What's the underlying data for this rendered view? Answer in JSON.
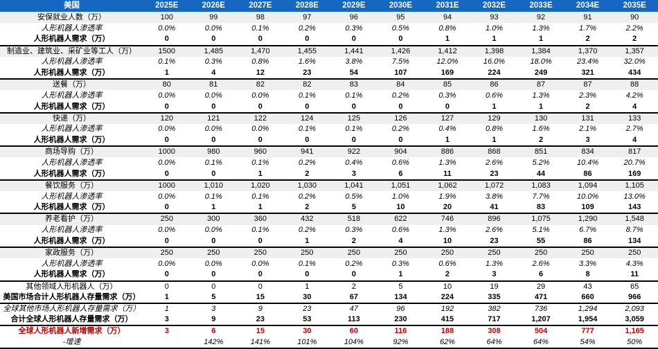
{
  "colors": {
    "header_bg": "#1567c2",
    "header_text": "#ffffff",
    "band_bg": "#efefef",
    "text": "#000000",
    "accent_red": "#c00000",
    "border": "#000000"
  },
  "chart_data": {
    "type": "table",
    "region_label": "美国",
    "categories": [
      "2025E",
      "2026E",
      "2027E",
      "2028E",
      "2029E",
      "2030E",
      "2031E",
      "2032E",
      "2033E",
      "2034E",
      "2035E"
    ],
    "rows": [
      {
        "label": "安保就业人数（万）",
        "style": "category",
        "separator": false,
        "values": [
          "100",
          "99",
          "98",
          "97",
          "96",
          "95",
          "94",
          "93",
          "92",
          "91",
          "90"
        ]
      },
      {
        "label": "人形机器人渗透率",
        "style": "penetration",
        "separator": false,
        "values": [
          "0.0%",
          "0.0%",
          "0.1%",
          "0.2%",
          "0.3%",
          "0.5%",
          "0.8%",
          "1.0%",
          "1.3%",
          "1.7%",
          "2.2%"
        ]
      },
      {
        "label": "人形机器人需求（万）",
        "style": "demand",
        "separator": false,
        "values": [
          "0",
          "0",
          "0",
          "0",
          "0",
          "0",
          "1",
          "1",
          "1",
          "2",
          "2"
        ]
      },
      {
        "label": "制造业、建筑业、采矿业等工人（万）",
        "style": "category",
        "separator": true,
        "values": [
          "1500",
          "1,485",
          "1,470",
          "1,455",
          "1,441",
          "1,426",
          "1,412",
          "1,398",
          "1,384",
          "1,370",
          "1,357"
        ]
      },
      {
        "label": "人形机器人渗透率",
        "style": "penetration",
        "separator": false,
        "values": [
          "0.1%",
          "0.3%",
          "0.8%",
          "1.6%",
          "3.8%",
          "7.5%",
          "12.0%",
          "16.0%",
          "18.0%",
          "23.4%",
          "32.0%"
        ]
      },
      {
        "label": "人形机器人需求（万）",
        "style": "demand",
        "separator": false,
        "values": [
          "1",
          "4",
          "12",
          "23",
          "54",
          "107",
          "169",
          "224",
          "249",
          "321",
          "434"
        ]
      },
      {
        "label": "送餐（万）",
        "style": "category",
        "separator": true,
        "values": [
          "80",
          "81",
          "82",
          "82",
          "83",
          "84",
          "85",
          "86",
          "87",
          "87",
          "88"
        ]
      },
      {
        "label": "人形机器人渗透率",
        "style": "penetration",
        "separator": false,
        "values": [
          "0.0%",
          "0.0%",
          "0.0%",
          "0.1%",
          "0.1%",
          "0.2%",
          "0.3%",
          "0.6%",
          "1.3%",
          "2.3%",
          "4.2%"
        ]
      },
      {
        "label": "人形机器人需求（万）",
        "style": "demand",
        "separator": false,
        "values": [
          "0",
          "0",
          "0",
          "0",
          "0",
          "0",
          "0",
          "1",
          "1",
          "2",
          "4"
        ]
      },
      {
        "label": "快递（万）",
        "style": "category",
        "separator": true,
        "values": [
          "120",
          "121",
          "122",
          "124",
          "125",
          "126",
          "127",
          "129",
          "130",
          "131",
          "133"
        ]
      },
      {
        "label": "人形机器人渗透率",
        "style": "penetration",
        "separator": false,
        "values": [
          "0.0%",
          "0.0%",
          "0.0%",
          "0.1%",
          "0.1%",
          "0.2%",
          "0.4%",
          "0.8%",
          "1.6%",
          "2.1%",
          "2.7%"
        ]
      },
      {
        "label": "人形机器人需求（万）",
        "style": "demand",
        "separator": false,
        "values": [
          "0",
          "0",
          "0",
          "0",
          "0",
          "0",
          "1",
          "1",
          "2",
          "3",
          "4"
        ]
      },
      {
        "label": "商场导购（万）",
        "style": "category",
        "separator": true,
        "values": [
          "1000",
          "980",
          "960",
          "941",
          "922",
          "904",
          "886",
          "868",
          "851",
          "834",
          "817"
        ]
      },
      {
        "label": "人形机器人渗透率",
        "style": "penetration",
        "separator": false,
        "values": [
          "0.0%",
          "0.1%",
          "0.1%",
          "0.2%",
          "0.4%",
          "0.6%",
          "1.3%",
          "2.6%",
          "5.2%",
          "10.4%",
          "20.7%"
        ]
      },
      {
        "label": "人形机器人需求（万）",
        "style": "demand",
        "separator": false,
        "values": [
          "0",
          "0",
          "1",
          "2",
          "3",
          "6",
          "11",
          "23",
          "44",
          "86",
          "169"
        ]
      },
      {
        "label": "餐饮服务（万）",
        "style": "category",
        "separator": true,
        "values": [
          "1000",
          "1,010",
          "1,020",
          "1,030",
          "1,041",
          "1,051",
          "1,062",
          "1,072",
          "1,083",
          "1,094",
          "1,105"
        ]
      },
      {
        "label": "人形机器人渗透率",
        "style": "penetration",
        "separator": false,
        "values": [
          "0.0%",
          "0.1%",
          "0.1%",
          "0.2%",
          "0.5%",
          "1.0%",
          "1.9%",
          "3.8%",
          "7.7%",
          "10.0%",
          "13.0%"
        ]
      },
      {
        "label": "人形机器人需求（万）",
        "style": "demand",
        "separator": false,
        "values": [
          "0",
          "1",
          "1",
          "2",
          "5",
          "10",
          "20",
          "41",
          "83",
          "109",
          "143"
        ]
      },
      {
        "label": "养老看护（万）",
        "style": "category",
        "separator": true,
        "values": [
          "250",
          "300",
          "360",
          "432",
          "518",
          "622",
          "746",
          "896",
          "1,075",
          "1,290",
          "1,548"
        ]
      },
      {
        "label": "人形机器人渗透率",
        "style": "penetration",
        "separator": false,
        "values": [
          "0.0%",
          "0.0%",
          "0.1%",
          "0.2%",
          "0.3%",
          "0.6%",
          "1.3%",
          "2.6%",
          "5.1%",
          "6.7%",
          "8.7%"
        ]
      },
      {
        "label": "人形机器人需求（万）",
        "style": "demand",
        "separator": false,
        "values": [
          "0",
          "0",
          "0",
          "1",
          "2",
          "4",
          "10",
          "23",
          "55",
          "86",
          "134"
        ]
      },
      {
        "label": "家政服务（万）",
        "style": "category",
        "separator": true,
        "values": [
          "250",
          "250",
          "250",
          "250",
          "250",
          "250",
          "250",
          "250",
          "250",
          "250",
          "250"
        ]
      },
      {
        "label": "人形机器人渗透率",
        "style": "penetration",
        "separator": false,
        "values": [
          "0.0%",
          "0.0%",
          "0.0%",
          "0.1%",
          "0.2%",
          "0.3%",
          "0.6%",
          "1.3%",
          "2.6%",
          "3.3%",
          "4.3%"
        ]
      },
      {
        "label": "人形机器人需求（万）",
        "style": "demand",
        "separator": false,
        "values": [
          "0",
          "0",
          "0",
          "0",
          "0",
          "1",
          "2",
          "3",
          "6",
          "8",
          "11"
        ]
      },
      {
        "label": "其他领域人形机器人（万）",
        "style": "other",
        "separator": true,
        "values": [
          "0",
          "0",
          "0",
          "1",
          "2",
          "5",
          "10",
          "19",
          "29",
          "43",
          "65"
        ]
      },
      {
        "label": "美国市场合计人形机器人存量需求（万）",
        "style": "us-total",
        "separator": false,
        "values": [
          "1",
          "5",
          "15",
          "30",
          "67",
          "134",
          "224",
          "335",
          "471",
          "660",
          "966"
        ]
      },
      {
        "label": "全球其他市场人形机器人存量需求（万）",
        "style": "global-other",
        "separator": true,
        "values": [
          "1",
          "3",
          "9",
          "23",
          "47",
          "96",
          "192",
          "382",
          "736",
          "1,294",
          "2,093"
        ]
      },
      {
        "label": "合计全球人形机器人存量需求（万）",
        "style": "global-total",
        "separator": false,
        "values": [
          "3",
          "9",
          "23",
          "53",
          "113",
          "230",
          "415",
          "717",
          "1,207",
          "1,954",
          "3,059"
        ]
      },
      {
        "label": "全球人形机器人新增需求（万）",
        "style": "new-demand",
        "separator": true,
        "values": [
          "3",
          "6",
          "15",
          "30",
          "60",
          "116",
          "188",
          "308",
          "504",
          "777",
          "1,165"
        ]
      },
      {
        "label": "-增速",
        "style": "growth",
        "separator": false,
        "values": [
          "",
          "142%",
          "141%",
          "101%",
          "104%",
          "92%",
          "62%",
          "64%",
          "64%",
          "54%",
          "50%"
        ]
      }
    ]
  }
}
